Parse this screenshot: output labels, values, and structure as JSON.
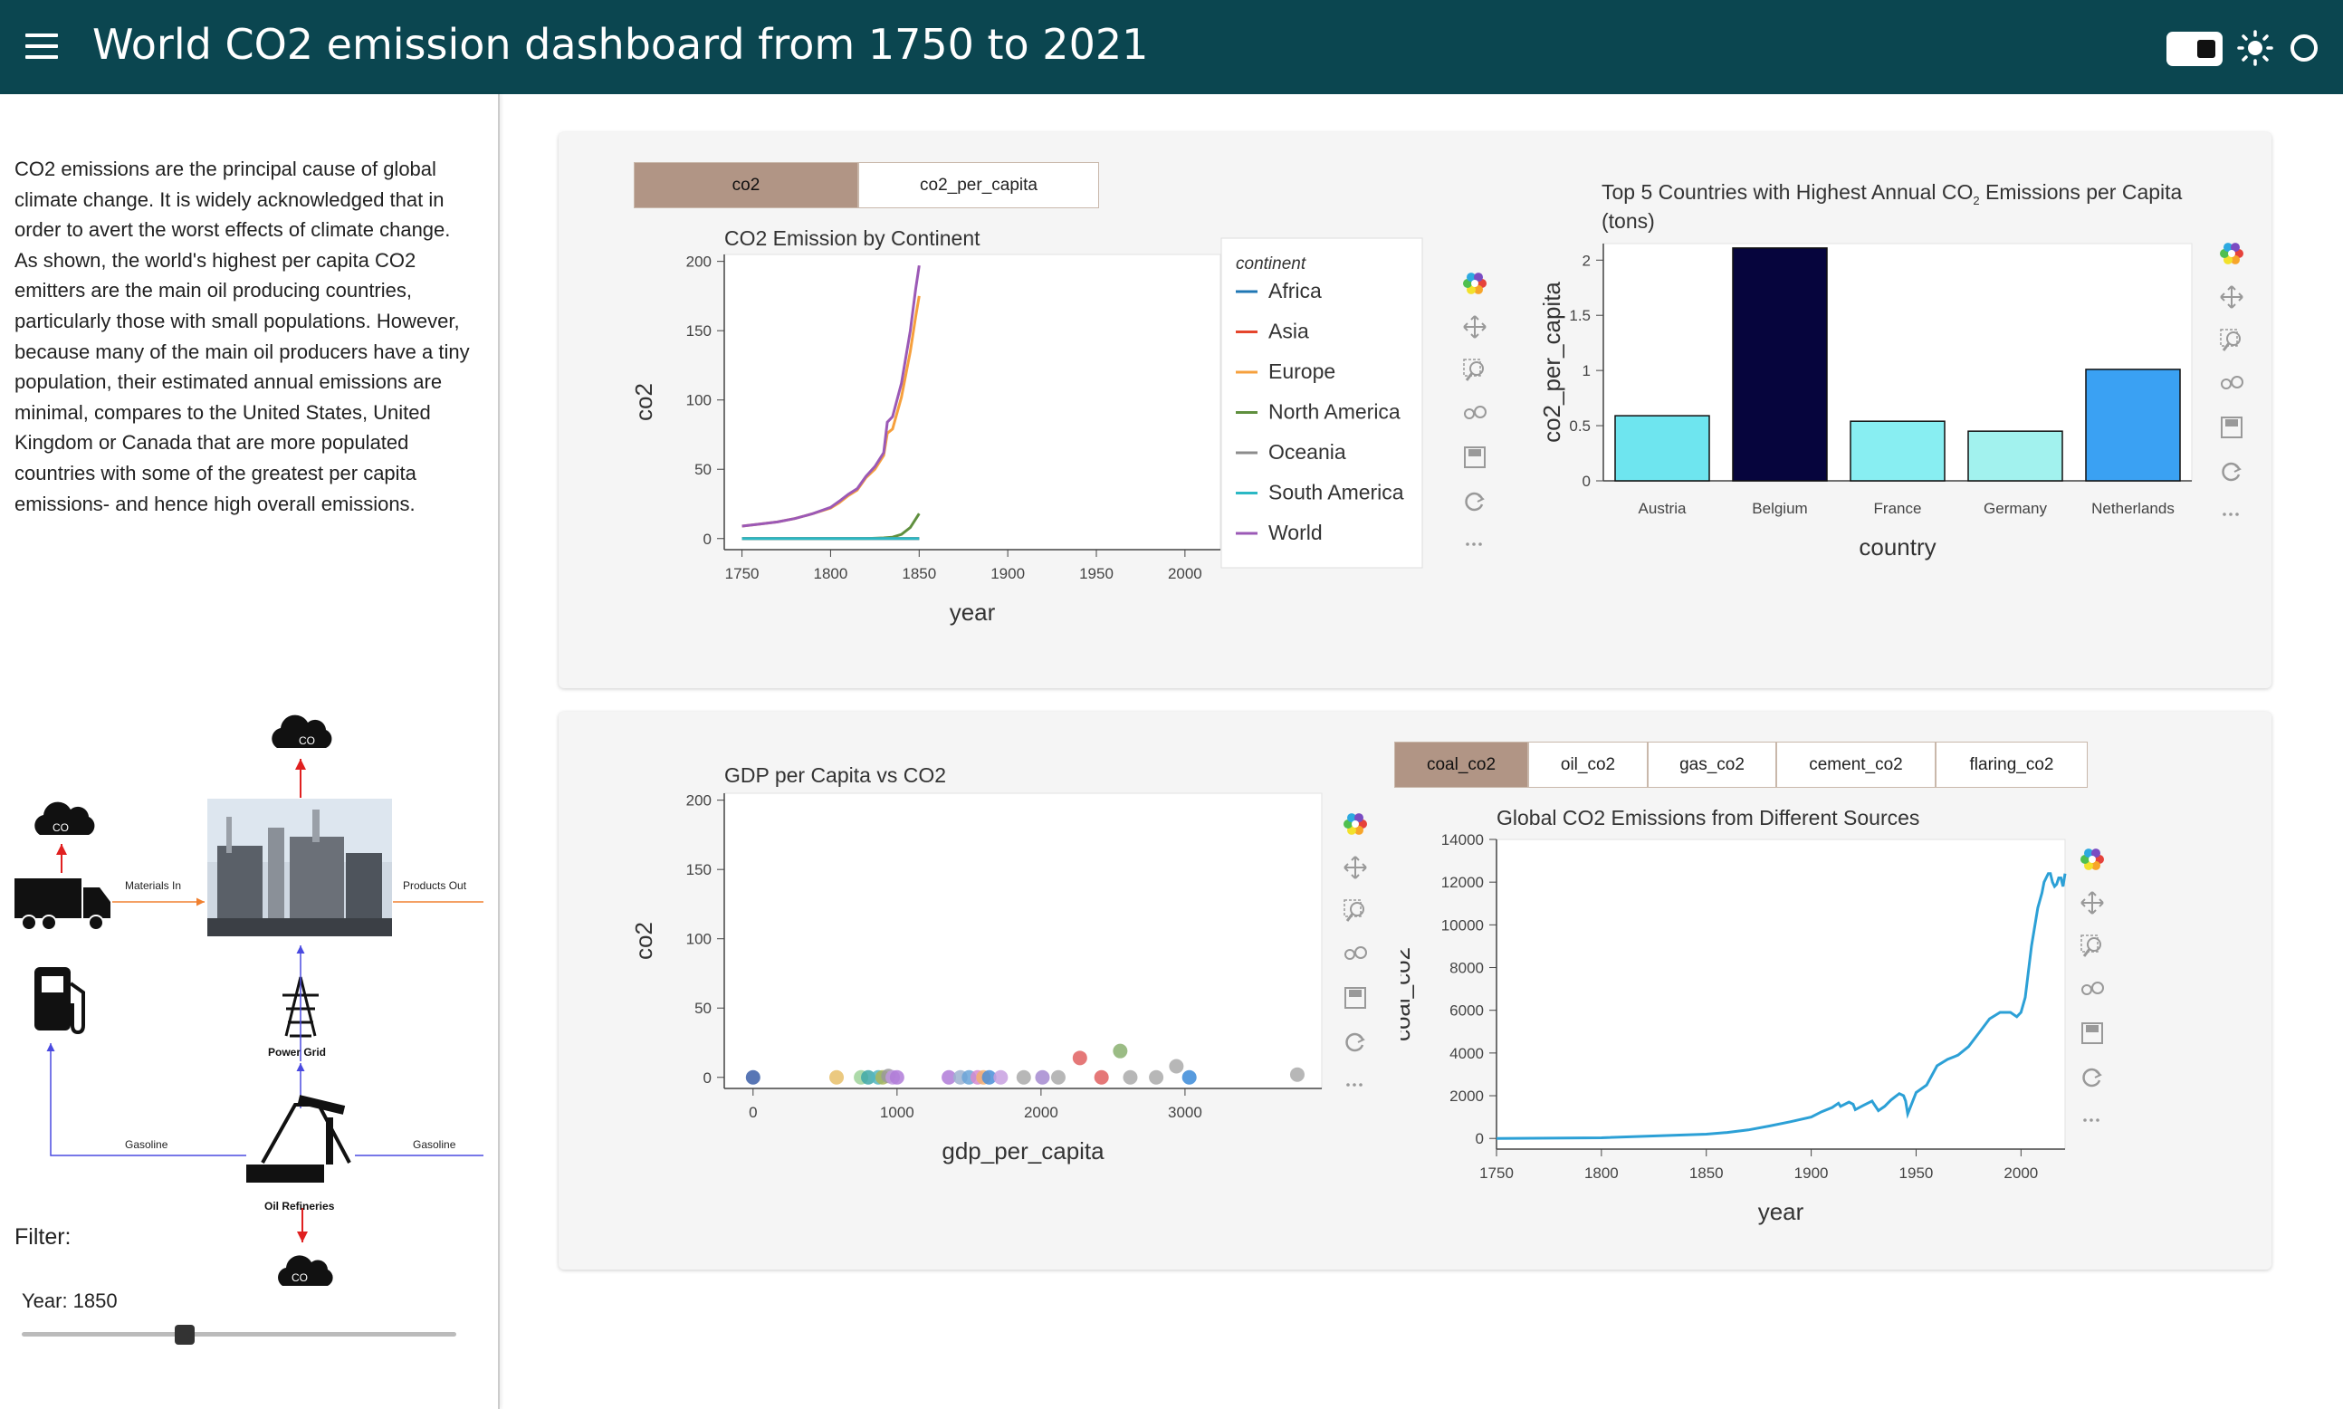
{
  "header": {
    "title": "World CO2 emission dashboard from 1750 to 2021"
  },
  "sidebar": {
    "description": "CO2 emissions are the principal cause of global climate change. It is widely acknowledged that in order to avert the worst effects of climate change. As shown, the world's highest per capita CO2 emitters are the main oil producing countries, particularly those with small populations. However, because many of the main oil producers have a tiny population, their estimated annual emissions are minimal, compares to the United States, United Kingdom or Canada that are more populated countries with some of the greatest per capita emissions- and hence high overall emissions.",
    "diagram": {
      "co2_label": "CO",
      "co2_sub": "2",
      "materials_in": "Materials In",
      "products_out": "Products Out",
      "power_grid": "Power Grid",
      "gasoline_left": "Gasoline",
      "gasoline_right": "Gasoline",
      "oil_refineries": "Oil Refineries"
    },
    "filter_label": "Filter:",
    "year_label": "Year: 1850",
    "slider": {
      "min": 1750,
      "max": 2021,
      "value": 1850
    }
  },
  "card1": {
    "tabs": [
      {
        "label": "co2",
        "active": true
      },
      {
        "label": "co2_per_capita",
        "active": false
      }
    ]
  },
  "card2": {
    "tabs": [
      {
        "label": "coal_co2",
        "active": true
      },
      {
        "label": "oil_co2",
        "active": false
      },
      {
        "label": "gas_co2",
        "active": false
      },
      {
        "label": "cement_co2",
        "active": false
      },
      {
        "label": "flaring_co2",
        "active": false
      }
    ]
  },
  "colors": {
    "header": "#0b4650",
    "tab_active": "#b19585"
  },
  "chart_data": [
    {
      "id": "continent",
      "type": "line",
      "title": "CO2 Emission by Continent",
      "xlabel": "year",
      "ylabel": "co2",
      "xlim": [
        1740,
        2020
      ],
      "ylim": [
        -8,
        205
      ],
      "xticks": [
        1750,
        1800,
        1850,
        1900,
        1950,
        2000
      ],
      "yticks": [
        0,
        50,
        100,
        150,
        200
      ],
      "legend_title": "continent",
      "legend_position": "right",
      "series": [
        {
          "name": "Africa",
          "color": "#1f77b4",
          "x": [
            1750,
            1850
          ],
          "y": [
            0,
            0
          ]
        },
        {
          "name": "Asia",
          "color": "#e5452c",
          "x": [
            1750,
            1850
          ],
          "y": [
            0,
            0
          ]
        },
        {
          "name": "Europe",
          "color": "#f6a03d",
          "x": [
            1750,
            1760,
            1770,
            1780,
            1790,
            1800,
            1805,
            1810,
            1815,
            1820,
            1825,
            1830,
            1832,
            1835,
            1840,
            1845,
            1848,
            1850
          ],
          "y": [
            9,
            10.5,
            12,
            14.5,
            18,
            22,
            26,
            31,
            35,
            44,
            50,
            60,
            76,
            79,
            102,
            135,
            160,
            175
          ]
        },
        {
          "name": "North America",
          "color": "#5f8f3e",
          "x": [
            1750,
            1800,
            1820,
            1830,
            1835,
            1840,
            1845,
            1850
          ],
          "y": [
            0,
            0,
            0,
            0.5,
            1,
            3,
            8,
            18
          ]
        },
        {
          "name": "Oceania",
          "color": "#8c8c8c",
          "x": [
            1750,
            1850
          ],
          "y": [
            0,
            0
          ]
        },
        {
          "name": "South America",
          "color": "#2bb8c4",
          "x": [
            1750,
            1850
          ],
          "y": [
            0,
            0
          ]
        },
        {
          "name": "World",
          "color": "#9b59b6",
          "x": [
            1750,
            1760,
            1770,
            1780,
            1790,
            1800,
            1805,
            1810,
            1815,
            1820,
            1825,
            1830,
            1832,
            1835,
            1840,
            1845,
            1848,
            1850
          ],
          "y": [
            9,
            10.5,
            12,
            14.5,
            18,
            22.5,
            27,
            32,
            36,
            45,
            52,
            62,
            84,
            88,
            112,
            150,
            180,
            197
          ]
        }
      ]
    },
    {
      "id": "top5",
      "type": "bar",
      "title": "Top 5 Countries with Highest Annual CO",
      "title_sub": "2",
      "title_rest": " Emissions per Capita",
      "title_line2": "(tons)",
      "xlabel": "country",
      "ylabel": "co2_per_capita",
      "ylim": [
        0,
        2.15
      ],
      "yticks": [
        0,
        0.5,
        1,
        1.5,
        2
      ],
      "categories": [
        "Austria",
        "Belgium",
        "France",
        "Germany",
        "Netherlands"
      ],
      "values": [
        0.59,
        2.11,
        0.54,
        0.45,
        1.01
      ],
      "colors": [
        "#6ee5ef",
        "#06053d",
        "#88eef2",
        "#a2f2ee",
        "#3aa1f3"
      ]
    },
    {
      "id": "gdp",
      "type": "scatter",
      "title": "GDP per Capita vs CO2",
      "xlabel": "gdp_per_capita",
      "ylabel": "co2",
      "xlim": [
        -200,
        3950
      ],
      "ylim": [
        -8,
        205
      ],
      "xticks": [
        0,
        1000,
        2000,
        3000
      ],
      "yticks": [
        0,
        50,
        100,
        150,
        200
      ],
      "points": [
        {
          "x": 0,
          "y": 0,
          "c": "#3b5ea8"
        },
        {
          "x": 580,
          "y": 0,
          "c": "#e8c06a"
        },
        {
          "x": 750,
          "y": 0,
          "c": "#9fd39a"
        },
        {
          "x": 800,
          "y": 0,
          "c": "#3fa8a8"
        },
        {
          "x": 870,
          "y": 0,
          "c": "#55b6c0"
        },
        {
          "x": 900,
          "y": 0,
          "c": "#aab55a"
        },
        {
          "x": 940,
          "y": 1,
          "c": "#9a9a9a"
        },
        {
          "x": 970,
          "y": 0,
          "c": "#c098e0"
        },
        {
          "x": 1000,
          "y": 0,
          "c": "#b07bd8"
        },
        {
          "x": 1360,
          "y": 0,
          "c": "#b07bd8"
        },
        {
          "x": 1440,
          "y": 0,
          "c": "#9db3d0"
        },
        {
          "x": 1500,
          "y": 0,
          "c": "#6aa5d8"
        },
        {
          "x": 1560,
          "y": 0,
          "c": "#d78ad0"
        },
        {
          "x": 1600,
          "y": 0,
          "c": "#f2b070"
        },
        {
          "x": 1640,
          "y": 0,
          "c": "#4a8ed8"
        },
        {
          "x": 1720,
          "y": 0,
          "c": "#c8a0e0"
        },
        {
          "x": 1880,
          "y": 0,
          "c": "#aaaaaa"
        },
        {
          "x": 2010,
          "y": 0,
          "c": "#a58ad0"
        },
        {
          "x": 2120,
          "y": 0,
          "c": "#aaaaaa"
        },
        {
          "x": 2270,
          "y": 14,
          "c": "#e06060"
        },
        {
          "x": 2420,
          "y": 0,
          "c": "#e06060"
        },
        {
          "x": 2550,
          "y": 19,
          "c": "#8ab070"
        },
        {
          "x": 2620,
          "y": 0,
          "c": "#aaaaaa"
        },
        {
          "x": 2800,
          "y": 0,
          "c": "#aaaaaa"
        },
        {
          "x": 2940,
          "y": 8,
          "c": "#aaaaaa"
        },
        {
          "x": 3030,
          "y": 0,
          "c": "#3a8ad8"
        },
        {
          "x": 3780,
          "y": 2,
          "c": "#aaaaaa"
        }
      ]
    },
    {
      "id": "global",
      "type": "line",
      "title": "Global CO2 Emissions from Different Sources",
      "xlabel": "year",
      "ylabel": "coal_co2",
      "xlim": [
        1750,
        2021
      ],
      "ylim": [
        -500,
        14000
      ],
      "xticks": [
        1750,
        1800,
        1850,
        1900,
        1950,
        2000
      ],
      "yticks": [
        0,
        2000,
        4000,
        6000,
        8000,
        10000,
        12000,
        14000
      ],
      "series": [
        {
          "name": "coal_co2",
          "color": "#2ca0d6",
          "x": [
            1750,
            1800,
            1850,
            1860,
            1870,
            1880,
            1890,
            1900,
            1905,
            1910,
            1913,
            1914,
            1918,
            1920,
            1921,
            1925,
            1929,
            1930,
            1932,
            1935,
            1938,
            1940,
            1942,
            1944,
            1945,
            1946,
            1950,
            1955,
            1960,
            1965,
            1970,
            1975,
            1980,
            1985,
            1990,
            1995,
            1998,
            2000,
            2002,
            2005,
            2008,
            2010,
            2011,
            2012,
            2013,
            2014,
            2015,
            2016,
            2017,
            2018,
            2019,
            2020,
            2021
          ],
          "y": [
            0,
            30,
            200,
            280,
            400,
            580,
            780,
            1000,
            1250,
            1450,
            1650,
            1500,
            1700,
            1600,
            1350,
            1550,
            1750,
            1600,
            1300,
            1500,
            1800,
            1950,
            2100,
            2000,
            1750,
            1150,
            2150,
            2500,
            3400,
            3700,
            3900,
            4300,
            4950,
            5600,
            5900,
            5900,
            5700,
            5900,
            6600,
            9000,
            10800,
            11500,
            12000,
            12200,
            12400,
            12400,
            12000,
            11800,
            11900,
            12200,
            12200,
            11800,
            12400
          ]
        }
      ]
    }
  ]
}
